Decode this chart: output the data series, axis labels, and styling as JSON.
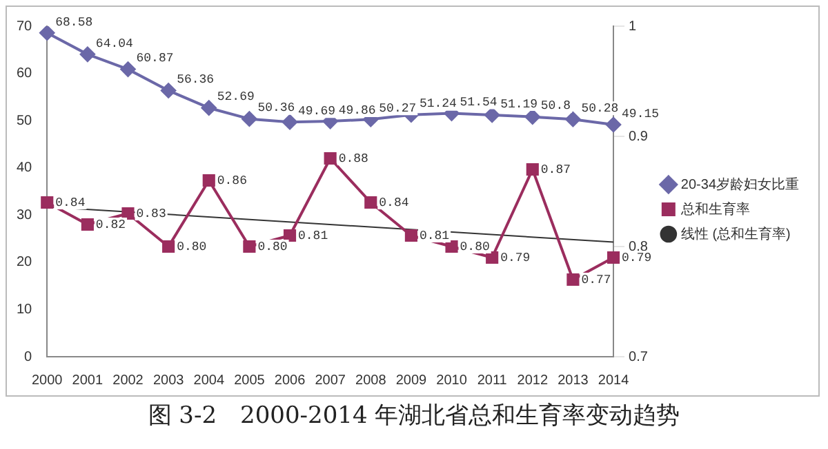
{
  "chart_data": {
    "type": "line",
    "title": "图 3-2　2000-2014 年湖北省总和生育率变动趋势",
    "categories": [
      "2000",
      "2001",
      "2002",
      "2003",
      "2004",
      "2005",
      "2006",
      "2007",
      "2008",
      "2009",
      "2010",
      "2011",
      "2012",
      "2013",
      "2014"
    ],
    "series": [
      {
        "name": "20-34岁龄妇女比重",
        "color": "#6b68a8",
        "marker": "diamond",
        "values": [
          68.58,
          64.04,
          60.87,
          56.36,
          52.69,
          50.36,
          49.69,
          49.86,
          50.27,
          51.24,
          51.54,
          51.19,
          50.8,
          50.28,
          49.15
        ],
        "value_labels": [
          "68.58",
          "64.04",
          "60.87",
          "56.36",
          "52.69",
          "50.36",
          "49.69",
          "49.86",
          "50.27",
          "51.24",
          "51.54",
          "51.19",
          "50.8",
          "50.28",
          "49.15"
        ]
      },
      {
        "name": "总和生育率",
        "color": "#9b2d5e",
        "marker": "square",
        "axis": "y2",
        "values": [
          0.84,
          0.82,
          0.83,
          0.8,
          0.86,
          0.8,
          0.81,
          0.88,
          0.84,
          0.81,
          0.8,
          0.79,
          0.87,
          0.77,
          0.79
        ],
        "value_labels": [
          "0.84",
          "0.82",
          "0.83",
          "0.80",
          "0.86",
          "0.80",
          "0.81",
          "0.88",
          "0.84",
          "0.81",
          "0.80",
          "0.79",
          "0.87",
          "0.77",
          "0.79"
        ]
      },
      {
        "name": "线性 (总和生育率)",
        "color": "#333333",
        "marker": "none",
        "axis": "y2",
        "values": [
          0.836,
          null,
          null,
          null,
          null,
          null,
          null,
          null,
          null,
          null,
          null,
          null,
          null,
          null,
          0.804
        ]
      }
    ],
    "ylim": [
      0,
      70
    ],
    "yticks": [
      0,
      10,
      20,
      30,
      40,
      50,
      60,
      70
    ],
    "y2lim": [
      0.7,
      1
    ],
    "y2ticks": [
      0.7,
      0.8,
      0.9,
      1
    ],
    "grid": false,
    "legend": "right"
  }
}
